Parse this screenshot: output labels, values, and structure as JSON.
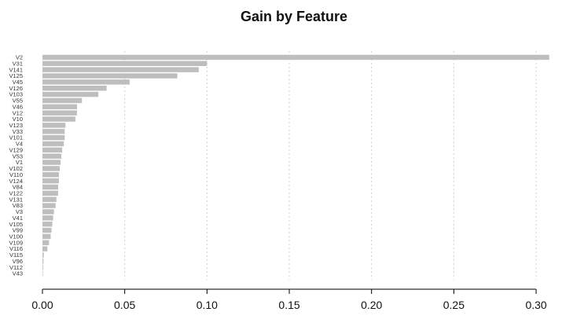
{
  "chart_data": {
    "type": "bar",
    "orientation": "horizontal",
    "title": "Gain by Feature",
    "xlabel": "",
    "ylabel": "",
    "xlim": [
      0,
      0.31
    ],
    "x_ticks": [
      0,
      0.05,
      0.1,
      0.15,
      0.2,
      0.25,
      0.3
    ],
    "x_tick_labels": [
      "0.00",
      "0.05",
      "0.10",
      "0.15",
      "0.20",
      "0.25",
      "0.30"
    ],
    "grid": "vertical-dotted",
    "bar_color": "#bebebe",
    "categories": [
      "V2",
      "V31",
      "V141",
      "V125",
      "V45",
      "V126",
      "V103",
      "V55",
      "V46",
      "V12",
      "V10",
      "V123",
      "V33",
      "V101",
      "V4",
      "V129",
      "V53",
      "V1",
      "V102",
      "V110",
      "V124",
      "V84",
      "V122",
      "V131",
      "V83",
      "V3",
      "V41",
      "V105",
      "V99",
      "V100",
      "V109",
      "V116",
      "V115",
      "V96",
      "V112",
      "V43"
    ],
    "values": [
      0.308,
      0.1,
      0.095,
      0.082,
      0.053,
      0.039,
      0.034,
      0.024,
      0.021,
      0.021,
      0.02,
      0.014,
      0.0135,
      0.0135,
      0.013,
      0.012,
      0.0115,
      0.011,
      0.0105,
      0.01,
      0.01,
      0.0095,
      0.0095,
      0.0085,
      0.008,
      0.007,
      0.0065,
      0.006,
      0.0055,
      0.005,
      0.004,
      0.003,
      0.0008,
      0.0006,
      0.0004,
      0.0002
    ]
  }
}
